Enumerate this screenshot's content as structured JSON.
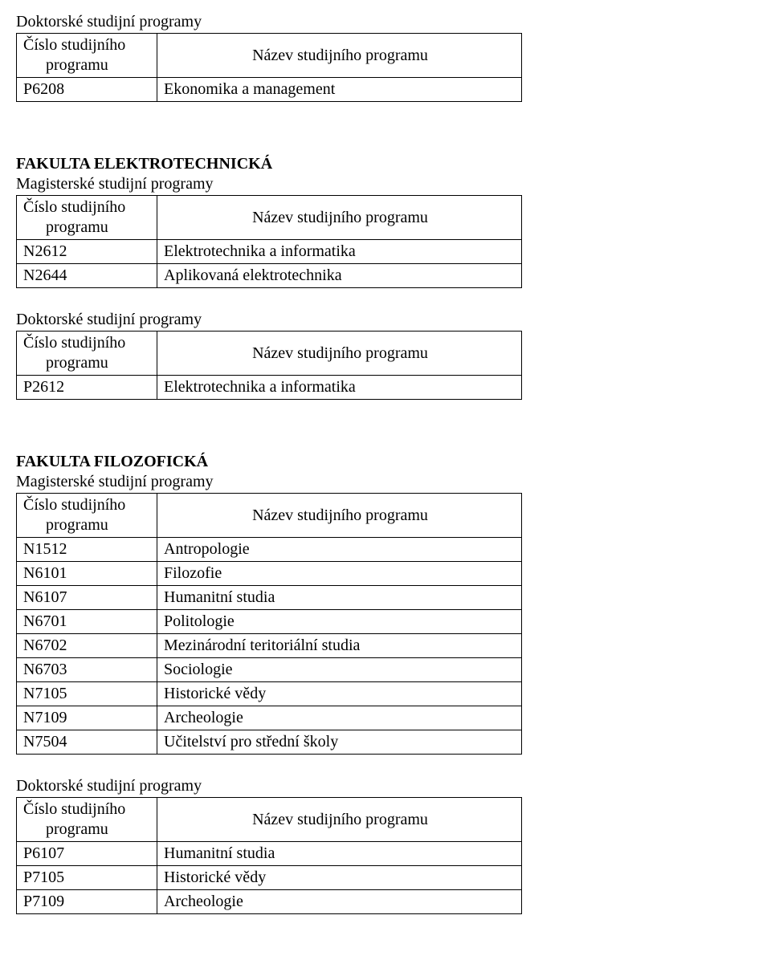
{
  "labels": {
    "doctoral": "Doktorské studijní programy",
    "masters": "Magisterské studijní programy",
    "col_code_line1": "Číslo studijního",
    "col_code_line2": "programu",
    "col_name": "Název studijního programu"
  },
  "sections": [
    {
      "faculty": null,
      "groups": [
        {
          "type": "doctoral",
          "rows": [
            {
              "code": "P6208",
              "name": "Ekonomika a management"
            }
          ]
        }
      ]
    },
    {
      "faculty": "FAKULTA ELEKTROTECHNICKÁ",
      "groups": [
        {
          "type": "masters",
          "rows": [
            {
              "code": "N2612",
              "name": "Elektrotechnika a informatika"
            },
            {
              "code": "N2644",
              "name": "Aplikovaná elektrotechnika"
            }
          ]
        },
        {
          "type": "doctoral",
          "rows": [
            {
              "code": "P2612",
              "name": "Elektrotechnika a informatika"
            }
          ]
        }
      ]
    },
    {
      "faculty": "FAKULTA FILOZOFICKÁ",
      "groups": [
        {
          "type": "masters",
          "rows": [
            {
              "code": "N1512",
              "name": "Antropologie"
            },
            {
              "code": "N6101",
              "name": "Filozofie"
            },
            {
              "code": "N6107",
              "name": "Humanitní studia"
            },
            {
              "code": "N6701",
              "name": "Politologie"
            },
            {
              "code": "N6702",
              "name": "Mezinárodní teritoriální studia"
            },
            {
              "code": "N6703",
              "name": "Sociologie"
            },
            {
              "code": "N7105",
              "name": "Historické vědy"
            },
            {
              "code": "N7109",
              "name": "Archeologie"
            },
            {
              "code": "N7504",
              "name": "Učitelství pro střední školy"
            }
          ]
        },
        {
          "type": "doctoral",
          "rows": [
            {
              "code": "P6107",
              "name": "Humanitní studia"
            },
            {
              "code": "P7105",
              "name": "Historické vědy"
            },
            {
              "code": "P7109",
              "name": "Archeologie"
            }
          ]
        }
      ]
    }
  ]
}
